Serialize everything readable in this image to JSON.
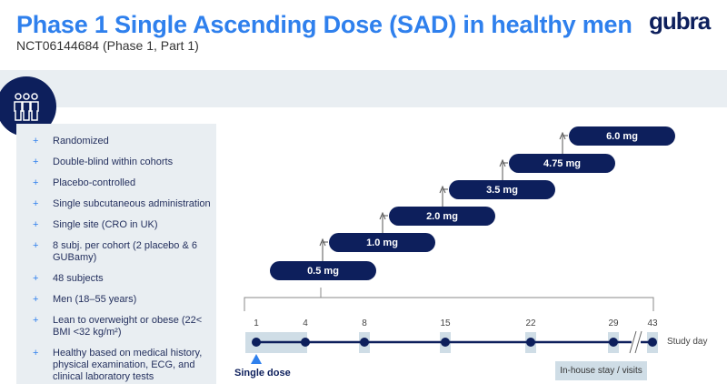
{
  "header": {
    "title": "Phase 1 Single Ascending Dose (SAD) in healthy men",
    "subtitle": "NCT06144684 (Phase 1, Part 1)",
    "logo": "gubra"
  },
  "criteria": [
    "Randomized",
    "Double-blind within cohorts",
    "Placebo-controlled",
    "Single subcutaneous administration",
    "Single site (CRO in UK)",
    "8 subj. per cohort (2 placebo & 6 GUBamy)",
    "48 subjects",
    "Men (18–55 years)",
    "Lean to overweight or obese (22< BMI <32 kg/m²)",
    "Healthy based on medical history, physical examination, ECG, and clinical laboratory tests"
  ],
  "bullet": "+",
  "doses": [
    "0.5 mg",
    "1.0 mg",
    "2.0 mg",
    "3.5 mg",
    "4.75 mg",
    "6.0 mg"
  ],
  "timeline": {
    "days": [
      "1",
      "4",
      "8",
      "15",
      "22",
      "29",
      "43"
    ],
    "axis_label": "Study day",
    "single_dose": "Single dose",
    "legend": "In-house stay / visits"
  },
  "colors": {
    "navy": "#0d1f5c",
    "blue": "#2f80ed",
    "light": "#e9eef2",
    "shade": "#cfdde6"
  }
}
